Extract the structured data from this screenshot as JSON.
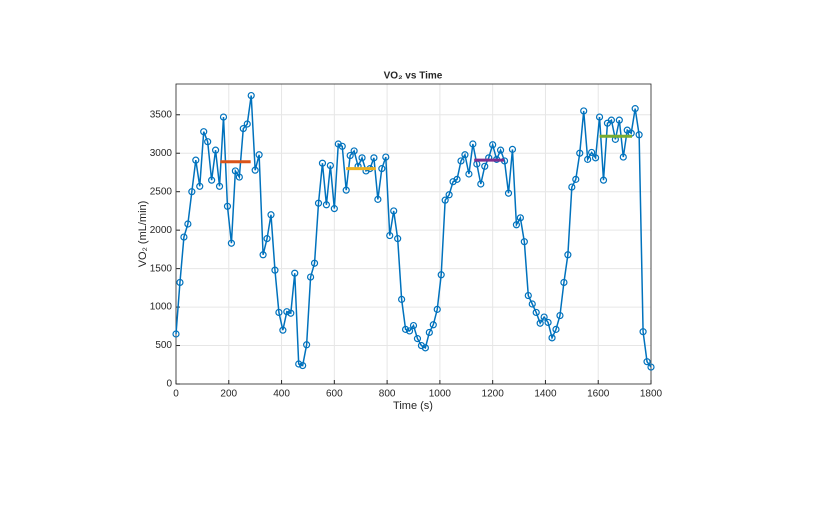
{
  "chart_data": {
    "type": "line",
    "title": "VO₂ vs Time",
    "x_label": "Time (s)",
    "y_label": "VO₂ (mL/min)",
    "x": [
      0,
      15,
      30,
      45,
      60,
      75,
      90,
      105,
      120,
      135,
      150,
      165,
      180,
      195,
      210,
      225,
      240,
      255,
      270,
      285,
      300,
      315,
      330,
      345,
      360,
      375,
      390,
      405,
      420,
      435,
      450,
      465,
      480,
      495,
      510,
      525,
      540,
      555,
      570,
      585,
      600,
      615,
      630,
      645,
      660,
      675,
      690,
      705,
      720,
      735,
      750,
      765,
      780,
      795,
      810,
      825,
      840,
      855,
      870,
      885,
      900,
      915,
      930,
      945,
      960,
      975,
      990,
      1005,
      1020,
      1035,
      1050,
      1065,
      1080,
      1095,
      1110,
      1125,
      1140,
      1155,
      1170,
      1185,
      1200,
      1215,
      1230,
      1245,
      1260,
      1275,
      1290,
      1305,
      1320,
      1335,
      1350,
      1365,
      1380,
      1395,
      1410,
      1425,
      1440,
      1455,
      1470,
      1485,
      1500,
      1515,
      1530,
      1545,
      1560,
      1575,
      1590,
      1605,
      1620,
      1635,
      1650,
      1665,
      1680,
      1695,
      1710,
      1725,
      1740,
      1755,
      1770,
      1785,
      1800
    ],
    "values": [
      650,
      1320,
      1910,
      2080,
      2500,
      2910,
      2570,
      3280,
      3150,
      2650,
      3040,
      2570,
      3470,
      2310,
      1830,
      2770,
      2690,
      3320,
      3380,
      3750,
      2780,
      2980,
      1680,
      1890,
      2200,
      1480,
      930,
      700,
      940,
      920,
      1440,
      260,
      240,
      510,
      1390,
      1570,
      2350,
      2870,
      2330,
      2840,
      2280,
      3120,
      3090,
      2520,
      2970,
      3030,
      2830,
      2940,
      2770,
      2800,
      2940,
      2400,
      2800,
      2950,
      1930,
      2250,
      1890,
      1100,
      710,
      690,
      760,
      590,
      500,
      470,
      670,
      770,
      970,
      1420,
      2390,
      2460,
      2630,
      2660,
      2900,
      2980,
      2730,
      3120,
      2860,
      2600,
      2830,
      2940,
      3110,
      2920,
      3040,
      2900,
      2480,
      3050,
      2070,
      2160,
      1850,
      1150,
      1040,
      930,
      790,
      870,
      800,
      600,
      710,
      890,
      1320,
      1680,
      2560,
      2660,
      3000,
      3550,
      2920,
      3010,
      2940,
      3470,
      2650,
      3390,
      3430,
      3180,
      3430,
      2950,
      3300,
      3260,
      3580,
      3240,
      680,
      290,
      220
    ],
    "color": "#0072bd",
    "segments": [
      {
        "color": "#d95319",
        "x": [
          168,
          283
        ],
        "values": [
          2890,
          2890
        ]
      },
      {
        "color": "#edb120",
        "x": [
          645,
          757
        ],
        "values": [
          2800,
          2800
        ]
      },
      {
        "color": "#7e2f8e",
        "x": [
          1130,
          1243
        ],
        "values": [
          2910,
          2910
        ]
      },
      {
        "color": "#77ac30",
        "x": [
          1605,
          1728
        ],
        "values": [
          3220,
          3220
        ]
      }
    ],
    "xlim": [
      0,
      1800
    ],
    "xticks": [
      0,
      200,
      400,
      600,
      800,
      1000,
      1200,
      1400,
      1600,
      1800
    ],
    "ylim": [
      0,
      3900
    ],
    "yticks": [
      0,
      500,
      1000,
      1500,
      2000,
      2500,
      3000,
      3500
    ],
    "grid": true
  }
}
